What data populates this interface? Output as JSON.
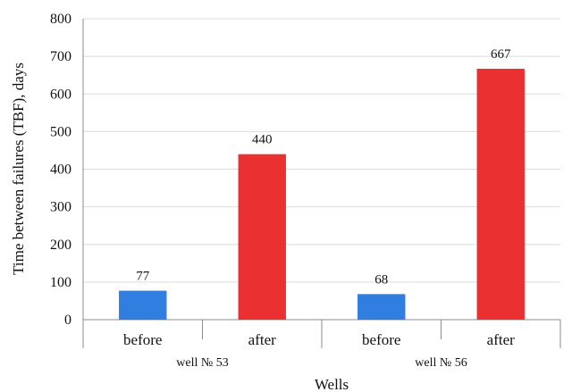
{
  "chart_data": {
    "type": "bar",
    "ylabel": "Time between failures (TBF), days",
    "xlabel": "Wells",
    "ylim": [
      0,
      800
    ],
    "yticks": [
      0,
      100,
      200,
      300,
      400,
      500,
      600,
      700,
      800
    ],
    "grid": true,
    "groups": [
      {
        "name": "well № 53",
        "bars": [
          {
            "category": "before",
            "value": 77,
            "color": "#2f7ee0"
          },
          {
            "category": "after",
            "value": 440,
            "color": "#ea3030"
          }
        ]
      },
      {
        "name": "well № 56",
        "bars": [
          {
            "category": "before",
            "value": 68,
            "color": "#2f7ee0"
          },
          {
            "category": "after",
            "value": 667,
            "color": "#ea3030"
          }
        ]
      }
    ]
  }
}
